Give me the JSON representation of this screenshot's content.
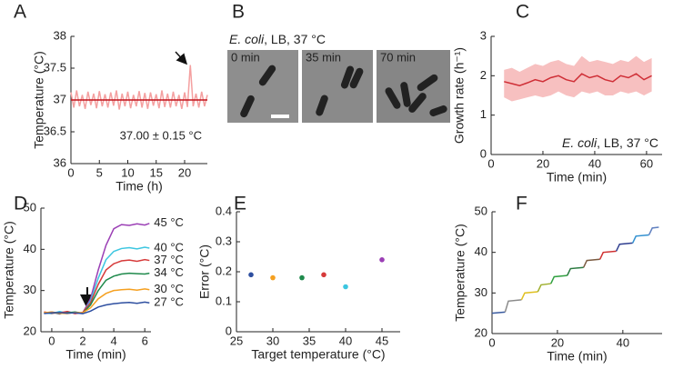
{
  "chart_data": [
    {
      "type": "line",
      "label": "A",
      "xlabel": "Time (h)",
      "ylabel": "Temperature (°C)",
      "xlim": [
        0,
        24
      ],
      "xticks": [
        0,
        5,
        10,
        15,
        20
      ],
      "ylim": [
        36,
        38
      ],
      "yticks": [
        36,
        36.5,
        37,
        37.5,
        38
      ],
      "annotation": "37.00 ± 0.15 °C",
      "series": [
        {
          "color": "#f4a0a0",
          "x": [
            0,
            0.5,
            1,
            1.5,
            2,
            2.5,
            3,
            3.5,
            4,
            4.5,
            5,
            5.5,
            6,
            6.5,
            7,
            7.5,
            8,
            8.5,
            9,
            9.5,
            10,
            10.5,
            11,
            11.5,
            12,
            12.5,
            13,
            13.5,
            14,
            14.5,
            15,
            15.5,
            16,
            16.5,
            17,
            17.5,
            18,
            18.5,
            19,
            19.5,
            20,
            20.5,
            21,
            21.5,
            22,
            22.5,
            23,
            23.5,
            24
          ],
          "values": [
            37.12,
            36.88,
            37.15,
            36.9,
            37.08,
            36.86,
            37.13,
            36.92,
            37.1,
            36.87,
            37.14,
            36.9,
            37.09,
            36.88,
            37.12,
            36.91,
            37.15,
            36.85,
            37.1,
            36.9,
            37.13,
            36.87,
            37.08,
            36.9,
            37.14,
            36.88,
            37.11,
            36.86,
            37.12,
            36.91,
            37.09,
            36.87,
            37.15,
            36.89,
            37.1,
            36.88,
            37.13,
            36.9,
            37.08,
            36.86,
            37.12,
            36.89,
            37.55,
            36.9,
            37.1,
            36.88,
            37.13,
            36.9,
            37.08
          ]
        },
        {
          "color": "#c0141c",
          "x": [
            0,
            24
          ],
          "values": [
            37,
            37
          ]
        }
      ]
    },
    {
      "type": "image",
      "label": "B",
      "title_italic": "E. coli",
      "title": ", LB, 37 °C",
      "frames": [
        "0 min",
        "35 min",
        "70 min"
      ]
    },
    {
      "type": "line",
      "label": "C",
      "xlabel": "Time (min)",
      "ylabel": "Growth rate (h⁻¹)",
      "xlim": [
        0,
        66
      ],
      "xticks": [
        0,
        20,
        40,
        60
      ],
      "ylim": [
        0,
        3
      ],
      "yticks": [
        0,
        1,
        2,
        3
      ],
      "annotation_italic": "E. coli",
      "annotation": ", LB, 37 °C",
      "series": [
        {
          "color": "#cf2e36",
          "band_color": "#f7c0c0",
          "x": [
            5,
            8,
            11,
            14,
            17,
            20,
            23,
            26,
            29,
            32,
            35,
            38,
            41,
            44,
            47,
            50,
            53,
            56,
            59,
            62
          ],
          "values": [
            1.85,
            1.8,
            1.75,
            1.82,
            1.9,
            1.85,
            1.95,
            2.0,
            1.9,
            1.85,
            2.05,
            1.95,
            2.0,
            1.9,
            1.85,
            2.0,
            1.95,
            2.05,
            1.9,
            2.0
          ],
          "lower": [
            1.45,
            1.35,
            1.4,
            1.45,
            1.5,
            1.45,
            1.5,
            1.6,
            1.5,
            1.45,
            1.6,
            1.55,
            1.6,
            1.5,
            1.5,
            1.6,
            1.55,
            1.6,
            1.5,
            1.6
          ],
          "upper": [
            2.15,
            2.2,
            2.1,
            2.2,
            2.3,
            2.25,
            2.35,
            2.4,
            2.3,
            2.25,
            2.5,
            2.35,
            2.4,
            2.35,
            2.3,
            2.4,
            2.35,
            2.5,
            2.35,
            2.45
          ]
        }
      ]
    },
    {
      "type": "line",
      "label": "D",
      "xlabel": "Time (min)",
      "ylabel": "Temperature (°C)",
      "xlim": [
        -0.7,
        6.4
      ],
      "xticks": [
        0,
        2,
        4,
        6
      ],
      "ylim": [
        20,
        50
      ],
      "yticks": [
        20,
        30,
        40,
        50
      ],
      "end_labels": true,
      "series": [
        {
          "name": "45 °C",
          "color": "#9b3fb5",
          "x": [
            -0.5,
            0,
            0.5,
            1,
            1.5,
            2,
            2.5,
            3,
            3.5,
            4,
            4.5,
            5,
            5.5,
            6,
            6.3
          ],
          "values": [
            24.5,
            24.8,
            24.3,
            24.9,
            24.5,
            24.6,
            28,
            35,
            41,
            45,
            46,
            45.8,
            46.2,
            45.9,
            46.3
          ]
        },
        {
          "name": "40 °C",
          "color": "#3cc6e0",
          "x": [
            -0.5,
            0,
            0.5,
            1,
            1.5,
            2,
            2.5,
            3,
            3.5,
            4,
            4.5,
            5,
            5.5,
            6,
            6.3
          ],
          "values": [
            24.6,
            24.4,
            24.9,
            24.5,
            24.7,
            24.5,
            27.5,
            33,
            37.5,
            39.5,
            40.2,
            40.4,
            40.1,
            40.5,
            40.3
          ]
        },
        {
          "name": "37 °C",
          "color": "#d63a3a",
          "x": [
            -0.5,
            0,
            0.5,
            1,
            1.5,
            2,
            2.5,
            3,
            3.5,
            4,
            4.5,
            5,
            5.5,
            6,
            6.3
          ],
          "values": [
            24.8,
            24.5,
            24.6,
            24.9,
            24.4,
            24.7,
            27,
            31.5,
            35,
            36.5,
            37.2,
            37.4,
            37.1,
            37.5,
            37.3
          ]
        },
        {
          "name": "34 °C",
          "color": "#1f8a4c",
          "x": [
            -0.5,
            0,
            0.5,
            1,
            1.5,
            2,
            2.5,
            3,
            3.5,
            4,
            4.5,
            5,
            5.5,
            6,
            6.3
          ],
          "values": [
            24.5,
            24.7,
            24.4,
            24.6,
            24.8,
            24.5,
            26.5,
            30,
            32.5,
            33.5,
            34,
            34.2,
            34.1,
            34,
            34.2
          ]
        },
        {
          "name": "30 °C",
          "color": "#f5a020",
          "x": [
            -0.5,
            0,
            0.5,
            1,
            1.5,
            2,
            2.5,
            3,
            3.5,
            4,
            4.5,
            5,
            5.5,
            6,
            6.3
          ],
          "values": [
            24.6,
            24.8,
            24.5,
            24.4,
            24.7,
            24.6,
            25.8,
            28,
            29.3,
            30,
            30.2,
            30.3,
            30.1,
            30.4,
            30.2
          ]
        },
        {
          "name": "27 °C",
          "color": "#2e4fa0",
          "x": [
            -0.5,
            0,
            0.5,
            1,
            1.5,
            2,
            2.5,
            3,
            3.5,
            4,
            4.5,
            5,
            5.5,
            6,
            6.3
          ],
          "values": [
            24.4,
            24.6,
            24.7,
            24.5,
            24.6,
            24.4,
            25,
            26,
            26.5,
            26.8,
            27,
            27.1,
            26.9,
            27.2,
            27
          ]
        }
      ]
    },
    {
      "type": "scatter",
      "label": "E",
      "xlabel": "Target temperature (°C)",
      "ylabel": "Error (°C)",
      "xlim": [
        25,
        47.5
      ],
      "xticks": [
        25,
        30,
        35,
        40,
        45
      ],
      "ylim": [
        0,
        0.4
      ],
      "yticks": [
        0,
        0.1,
        0.2,
        0.3,
        0.4
      ],
      "x": [
        27,
        30,
        34,
        37,
        40,
        45
      ],
      "values": [
        0.19,
        0.18,
        0.18,
        0.19,
        0.15,
        0.24
      ],
      "colors": [
        "#2e4fa0",
        "#f5a020",
        "#1f8a4c",
        "#d63a3a",
        "#3cc6e0",
        "#9b3fb5"
      ]
    },
    {
      "type": "line",
      "label": "F",
      "xlabel": "Time (min)",
      "ylabel": "Temperature (°C)",
      "xlim": [
        0,
        52
      ],
      "xticks": [
        0,
        20,
        40
      ],
      "ylim": [
        20,
        50
      ],
      "yticks": [
        20,
        30,
        40,
        50
      ],
      "series": [
        {
          "color": "#3a5ba0",
          "x": [
            0,
            4
          ],
          "values": [
            25,
            25.3
          ]
        },
        {
          "color": "#8a8a8a",
          "x": [
            4,
            5,
            9
          ],
          "values": [
            25.3,
            28,
            28.3
          ]
        },
        {
          "color": "#e0c020",
          "x": [
            9,
            10,
            14
          ],
          "values": [
            28.3,
            30,
            30.3
          ]
        },
        {
          "color": "#a0b030",
          "x": [
            14,
            15,
            18
          ],
          "values": [
            30.3,
            32,
            32.3
          ]
        },
        {
          "color": "#30a040",
          "x": [
            18,
            19,
            23
          ],
          "values": [
            32.3,
            34,
            34.3
          ]
        },
        {
          "color": "#2a7a40",
          "x": [
            23,
            24,
            28
          ],
          "values": [
            34.3,
            36,
            36.3
          ]
        },
        {
          "color": "#7a5a40",
          "x": [
            28,
            29,
            33
          ],
          "values": [
            36.3,
            38,
            38.3
          ]
        },
        {
          "color": "#d03030",
          "x": [
            33,
            34,
            38
          ],
          "values": [
            38.3,
            40,
            40.3
          ]
        },
        {
          "color": "#304090",
          "x": [
            38,
            39,
            43
          ],
          "values": [
            40.3,
            42,
            42.3
          ]
        },
        {
          "color": "#3090d0",
          "x": [
            43,
            44,
            48
          ],
          "values": [
            42.3,
            44,
            44.3
          ]
        },
        {
          "color": "#6080c0",
          "x": [
            48,
            49,
            51
          ],
          "values": [
            44.3,
            46,
            46.2
          ]
        }
      ]
    }
  ]
}
